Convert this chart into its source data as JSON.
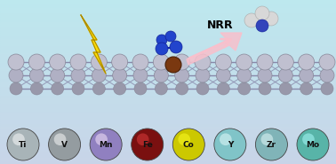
{
  "bg_top": "#bde8ee",
  "bg_bottom": "#c8d4e8",
  "elements": [
    "Ti",
    "V",
    "Mn",
    "Fe",
    "Co",
    "Y",
    "Zr",
    "Mo"
  ],
  "element_colors": [
    "#a8b4b8",
    "#949ca0",
    "#9080c0",
    "#7a1010",
    "#ccc800",
    "#80c4c8",
    "#80b4b8",
    "#58b4a8"
  ],
  "nrr_label": "NRR",
  "lightning_color": "#FFE000",
  "lightning_edge": "#aa8800",
  "lattice_ball_color": "#b0b0c4",
  "lattice_edge_color": "#888899",
  "lattice_bond_color": "#8888aa",
  "tm_color": "#7a3810",
  "n2_color": "#2244cc",
  "nh3_n_color": "#3344bb",
  "nh3_h_color": "#d8d8d8",
  "arrow_color": "#f8c0cc"
}
